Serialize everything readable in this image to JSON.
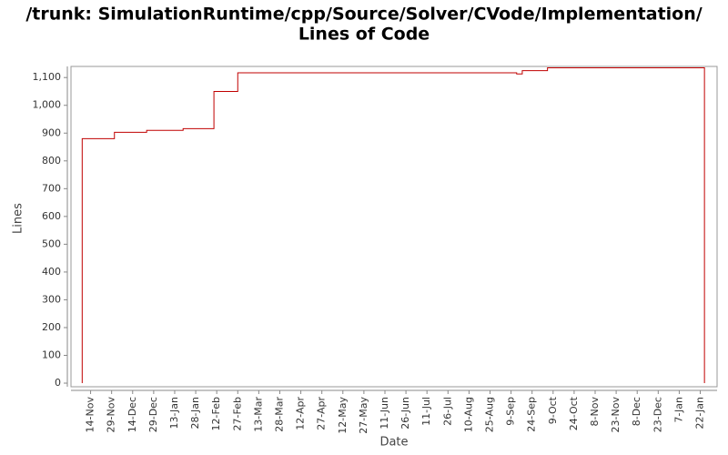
{
  "chart_data": {
    "type": "line",
    "title": "/trunk: SimulationRuntime/cpp/Source/Solver/CVode/Implementation/",
    "subtitle": "Lines of Code",
    "x_label": "Date",
    "y_label": "Lines",
    "xlim": [
      -14,
      447
    ],
    "ylim": [
      -13,
      1140
    ],
    "xticks": [
      {
        "value": 0,
        "label": "14-Nov"
      },
      {
        "value": 15,
        "label": "29-Nov"
      },
      {
        "value": 30,
        "label": "14-Dec"
      },
      {
        "value": 45,
        "label": "29-Dec"
      },
      {
        "value": 60,
        "label": "13-Jan"
      },
      {
        "value": 75,
        "label": "28-Jan"
      },
      {
        "value": 90,
        "label": "12-Feb"
      },
      {
        "value": 105,
        "label": "27-Feb"
      },
      {
        "value": 120,
        "label": "13-Mar"
      },
      {
        "value": 135,
        "label": "28-Mar"
      },
      {
        "value": 150,
        "label": "12-Apr"
      },
      {
        "value": 165,
        "label": "27-Apr"
      },
      {
        "value": 180,
        "label": "12-May"
      },
      {
        "value": 195,
        "label": "27-May"
      },
      {
        "value": 210,
        "label": "11-Jun"
      },
      {
        "value": 225,
        "label": "26-Jun"
      },
      {
        "value": 240,
        "label": "11-Jul"
      },
      {
        "value": 255,
        "label": "26-Jul"
      },
      {
        "value": 270,
        "label": "10-Aug"
      },
      {
        "value": 285,
        "label": "25-Aug"
      },
      {
        "value": 300,
        "label": "9-Sep"
      },
      {
        "value": 315,
        "label": "24-Sep"
      },
      {
        "value": 330,
        "label": "9-Oct"
      },
      {
        "value": 345,
        "label": "24-Oct"
      },
      {
        "value": 360,
        "label": "8-Nov"
      },
      {
        "value": 375,
        "label": "23-Nov"
      },
      {
        "value": 390,
        "label": "8-Dec"
      },
      {
        "value": 405,
        "label": "23-Dec"
      },
      {
        "value": 420,
        "label": "7-Jan"
      },
      {
        "value": 435,
        "label": "22-Jan"
      }
    ],
    "yticks": [
      0,
      100,
      200,
      300,
      400,
      500,
      600,
      700,
      800,
      900,
      {
        "value": 1000,
        "label": "1,000"
      },
      {
        "value": 1100,
        "label": "1,100"
      }
    ],
    "series": [
      {
        "color": "#c00000",
        "x": [
          -6,
          -6,
          17,
          17,
          40,
          40,
          66,
          66,
          88,
          88,
          105,
          105,
          304,
          304,
          308,
          308,
          326,
          326,
          438,
          438
        ],
        "values": [
          0,
          880,
          880,
          903,
          903,
          910,
          910,
          916,
          916,
          1050,
          1050,
          1117,
          1117,
          1113,
          1113,
          1125,
          1125,
          1135,
          1135,
          0
        ]
      }
    ]
  }
}
